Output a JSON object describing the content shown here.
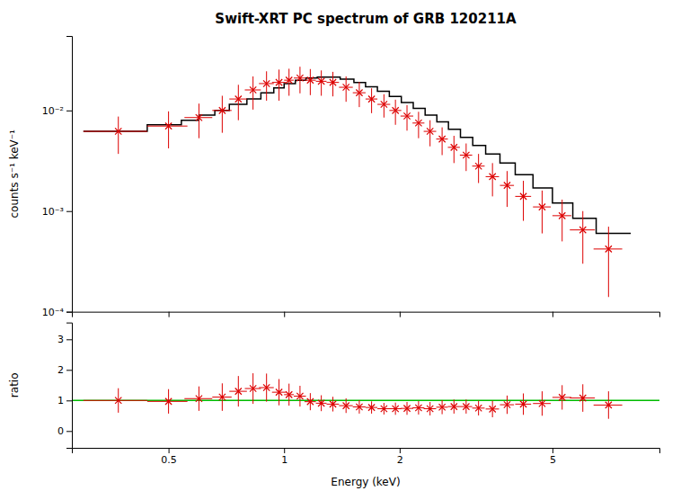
{
  "chart_data": [
    {
      "type": "scatter",
      "title": "Swift-XRT PC spectrum of GRB 120211A",
      "ylabel": "counts s⁻¹ keV⁻¹",
      "log": true,
      "grid": false,
      "tick_labels": "y",
      "xlim": [
        0.28,
        9.5
      ],
      "xticks": [
        0.5,
        1,
        2,
        5
      ],
      "ylim": [
        0.0001,
        0.055
      ],
      "yticks": [
        {
          "value": 0.0001,
          "label": "10⁻⁴"
        },
        {
          "value": 0.001,
          "label": "10⁻³"
        },
        {
          "value": 0.01,
          "label": "10⁻²"
        }
      ],
      "series": [
        {
          "type": "step",
          "color": "#000000",
          "bins": [
            [
              0.3,
              0.44
            ],
            [
              0.44,
              0.54
            ],
            [
              0.54,
              0.6
            ],
            [
              0.6,
              0.66
            ],
            [
              0.66,
              0.72
            ],
            [
              0.72,
              0.8
            ],
            [
              0.8,
              0.87
            ],
            [
              0.87,
              0.94
            ],
            [
              0.94,
              1.0
            ],
            [
              1.0,
              1.07
            ],
            [
              1.07,
              1.14
            ],
            [
              1.14,
              1.22
            ],
            [
              1.22,
              1.3
            ],
            [
              1.3,
              1.4
            ],
            [
              1.4,
              1.52
            ],
            [
              1.52,
              1.63
            ],
            [
              1.63,
              1.75
            ],
            [
              1.75,
              1.88
            ],
            [
              1.88,
              2.02
            ],
            [
              2.02,
              2.17
            ],
            [
              2.17,
              2.33
            ],
            [
              2.33,
              2.5
            ],
            [
              2.5,
              2.68
            ],
            [
              2.68,
              2.88
            ],
            [
              2.88,
              3.1
            ],
            [
              3.1,
              3.35
            ],
            [
              3.35,
              3.65
            ],
            [
              3.65,
              4.0
            ],
            [
              4.0,
              4.45
            ],
            [
              4.45,
              5.0
            ],
            [
              5.0,
              5.65
            ],
            [
              5.65,
              6.5
            ],
            [
              6.5,
              8.0
            ]
          ],
          "values": [
            0.0062,
            0.0072,
            0.008,
            0.009,
            0.01,
            0.0115,
            0.013,
            0.015,
            0.0168,
            0.0185,
            0.02,
            0.021,
            0.0215,
            0.0215,
            0.0205,
            0.019,
            0.0172,
            0.0155,
            0.0138,
            0.012,
            0.0105,
            0.009,
            0.0077,
            0.0065,
            0.0054,
            0.0045,
            0.0037,
            0.003,
            0.0023,
            0.0017,
            0.0012,
            0.00085,
            0.0006
          ]
        },
        {
          "type": "scatter",
          "marker": "x",
          "color": "#dd0000",
          "x": [
            0.37,
            0.5,
            0.6,
            0.69,
            0.76,
            0.83,
            0.9,
            0.97,
            1.03,
            1.1,
            1.17,
            1.25,
            1.34,
            1.45,
            1.57,
            1.69,
            1.82,
            1.95,
            2.09,
            2.24,
            2.4,
            2.58,
            2.77,
            2.98,
            3.21,
            3.49,
            3.81,
            4.2,
            4.7,
            5.3,
            6.0,
            7.0
          ],
          "x_error": [
            0.07,
            0.06,
            0.05,
            0.04,
            0.04,
            0.04,
            0.04,
            0.04,
            0.03,
            0.04,
            0.04,
            0.04,
            0.05,
            0.06,
            0.06,
            0.06,
            0.07,
            0.07,
            0.08,
            0.08,
            0.09,
            0.09,
            0.1,
            0.11,
            0.12,
            0.14,
            0.16,
            0.2,
            0.25,
            0.3,
            0.45,
            0.6
          ],
          "values": [
            0.0062,
            0.007,
            0.0085,
            0.01,
            0.013,
            0.016,
            0.0185,
            0.019,
            0.02,
            0.021,
            0.02,
            0.0195,
            0.019,
            0.017,
            0.015,
            0.013,
            0.0115,
            0.01,
            0.0088,
            0.0075,
            0.0062,
            0.0052,
            0.0043,
            0.0036,
            0.0028,
            0.0022,
            0.0018,
            0.0014,
            0.0011,
            0.0009,
            0.00065,
            0.00042
          ],
          "error": [
            0.0025,
            0.0028,
            0.0032,
            0.004,
            0.005,
            0.0058,
            0.006,
            0.0065,
            0.006,
            0.0062,
            0.0058,
            0.0055,
            0.0052,
            0.0048,
            0.0042,
            0.0036,
            0.003,
            0.0028,
            0.0025,
            0.0022,
            0.0018,
            0.0016,
            0.0013,
            0.0011,
            0.0009,
            0.0008,
            0.0007,
            0.0006,
            0.0005,
            0.0004,
            0.00035,
            0.00028
          ]
        }
      ]
    },
    {
      "type": "scatter",
      "xlabel": "Energy (keV)",
      "ylabel": "ratio",
      "log": "x",
      "grid": false,
      "xlim": [
        0.28,
        9.5
      ],
      "xticks": [
        0.5,
        1,
        2,
        5
      ],
      "ylim": [
        -0.55,
        3.55
      ],
      "yticks": [
        0,
        1,
        2,
        3
      ],
      "series": [
        {
          "type": "hline",
          "color": "#00bb00",
          "values": [
            1.0
          ]
        },
        {
          "type": "scatter",
          "marker": "x",
          "color": "#dd0000",
          "x": [
            0.37,
            0.5,
            0.6,
            0.69,
            0.76,
            0.83,
            0.9,
            0.97,
            1.03,
            1.1,
            1.17,
            1.25,
            1.34,
            1.45,
            1.57,
            1.69,
            1.82,
            1.95,
            2.09,
            2.24,
            2.4,
            2.58,
            2.77,
            2.98,
            3.21,
            3.49,
            3.81,
            4.2,
            4.7,
            5.3,
            6.0,
            7.0
          ],
          "x_error": [
            0.07,
            0.06,
            0.05,
            0.04,
            0.04,
            0.04,
            0.04,
            0.04,
            0.03,
            0.04,
            0.04,
            0.04,
            0.05,
            0.06,
            0.06,
            0.06,
            0.07,
            0.07,
            0.08,
            0.08,
            0.09,
            0.09,
            0.1,
            0.11,
            0.12,
            0.14,
            0.16,
            0.2,
            0.25,
            0.3,
            0.45,
            0.6
          ],
          "values": [
            1.0,
            0.97,
            1.06,
            1.11,
            1.3,
            1.39,
            1.42,
            1.27,
            1.19,
            1.14,
            0.96,
            0.91,
            0.88,
            0.83,
            0.79,
            0.77,
            0.73,
            0.73,
            0.74,
            0.76,
            0.73,
            0.78,
            0.8,
            0.8,
            0.75,
            0.72,
            0.86,
            0.88,
            0.9,
            1.1,
            1.08,
            0.85
          ],
          "error": [
            0.4,
            0.4,
            0.4,
            0.45,
            0.5,
            0.5,
            0.46,
            0.43,
            0.36,
            0.34,
            0.28,
            0.26,
            0.24,
            0.24,
            0.22,
            0.2,
            0.19,
            0.2,
            0.21,
            0.22,
            0.22,
            0.23,
            0.23,
            0.23,
            0.24,
            0.27,
            0.3,
            0.35,
            0.4,
            0.4,
            0.45,
            0.45
          ]
        }
      ]
    }
  ]
}
